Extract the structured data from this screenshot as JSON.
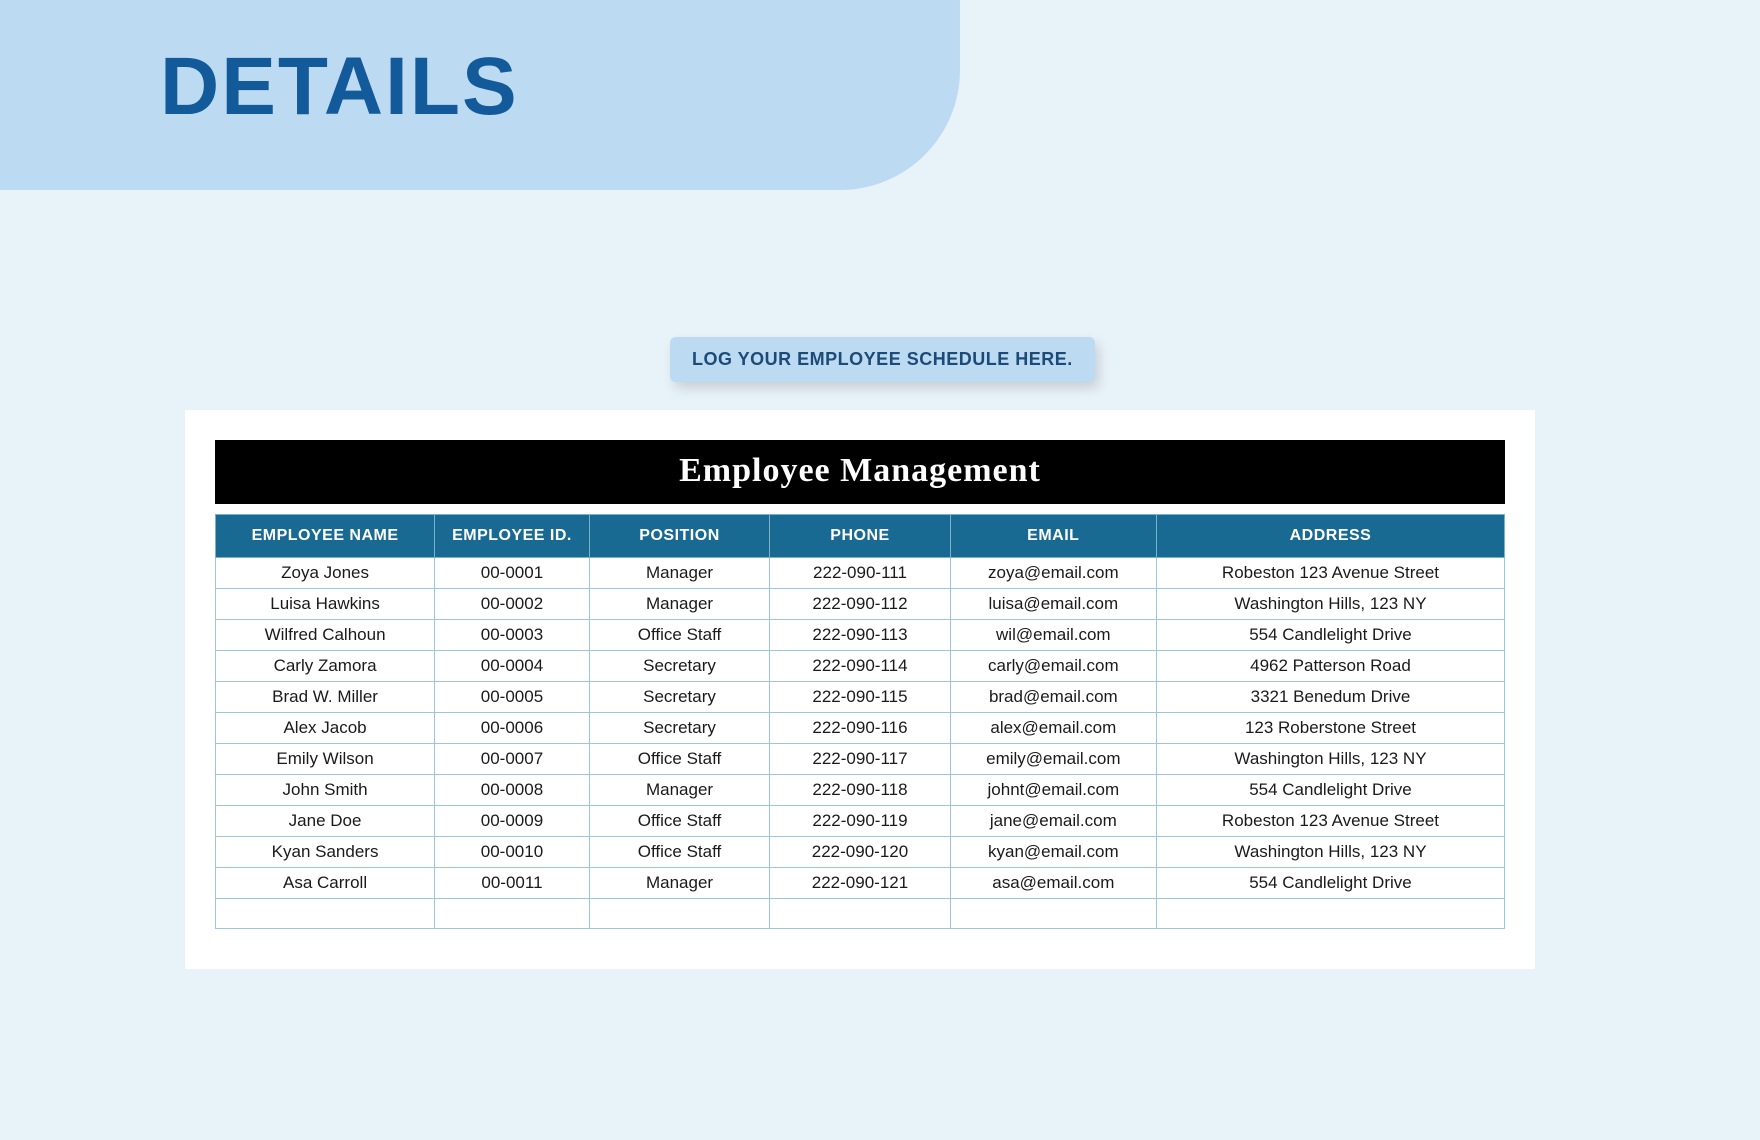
{
  "page": {
    "title": "DETAILS",
    "background_color": "#e8f3f9",
    "header_shape_color": "#bcdaf1",
    "title_color": "#135a9b",
    "title_fontsize": 82
  },
  "log_button": {
    "label": "LOG YOUR EMPLOYEE SCHEDULE HERE.",
    "bg_color": "#bcdaf1",
    "text_color": "#1d4b78"
  },
  "table": {
    "type": "table",
    "title": "Employee Management",
    "title_bg": "#000000",
    "title_text_color": "#ffffff",
    "title_fontsize": 34,
    "header_bg": "#196a92",
    "header_text_color": "#ffffff",
    "header_fontsize": 16,
    "cell_fontsize": 17,
    "cell_text_color": "#1a1a1a",
    "border_color": "#9cc7d8",
    "card_bg": "#ffffff",
    "columns": [
      {
        "label": "EMPLOYEE NAME",
        "width_pct": 17,
        "align": "center"
      },
      {
        "label": "EMPLOYEE ID.",
        "width_pct": 12,
        "align": "center"
      },
      {
        "label": "POSITION",
        "width_pct": 14,
        "align": "center"
      },
      {
        "label": "PHONE",
        "width_pct": 14,
        "align": "center"
      },
      {
        "label": "EMAIL",
        "width_pct": 16,
        "align": "center"
      },
      {
        "label": "ADDRESS",
        "width_pct": 27,
        "align": "center"
      }
    ],
    "rows": [
      [
        "Zoya Jones",
        "00-0001",
        "Manager",
        "222-090-111",
        "zoya@email.com",
        "Robeston 123 Avenue Street"
      ],
      [
        "Luisa Hawkins",
        "00-0002",
        "Manager",
        "222-090-112",
        "luisa@email.com",
        "Washington Hills, 123 NY"
      ],
      [
        "Wilfred Calhoun",
        "00-0003",
        "Office Staff",
        "222-090-113",
        "wil@email.com",
        "554 Candlelight Drive"
      ],
      [
        "Carly Zamora",
        "00-0004",
        "Secretary",
        "222-090-114",
        "carly@email.com",
        "4962 Patterson Road"
      ],
      [
        "Brad W. Miller",
        "00-0005",
        "Secretary",
        "222-090-115",
        "brad@email.com",
        "3321 Benedum Drive"
      ],
      [
        "Alex Jacob",
        "00-0006",
        "Secretary",
        "222-090-116",
        "alex@email.com",
        "123 Roberstone Street"
      ],
      [
        "Emily Wilson",
        "00-0007",
        "Office Staff",
        "222-090-117",
        "emily@email.com",
        "Washington Hills, 123 NY"
      ],
      [
        "John Smith",
        "00-0008",
        "Manager",
        "222-090-118",
        "johnt@email.com",
        "554 Candlelight Drive"
      ],
      [
        "Jane Doe",
        "00-0009",
        "Office Staff",
        "222-090-119",
        "jane@email.com",
        "Robeston 123 Avenue Street"
      ],
      [
        "Kyan Sanders",
        "00-0010",
        "Office Staff",
        "222-090-120",
        "kyan@email.com",
        "Washington Hills, 123 NY"
      ],
      [
        "Asa Carroll",
        "00-0011",
        "Manager",
        "222-090-121",
        "asa@email.com",
        "554 Candlelight Drive"
      ],
      [
        "",
        "",
        "",
        "",
        "",
        ""
      ]
    ]
  }
}
